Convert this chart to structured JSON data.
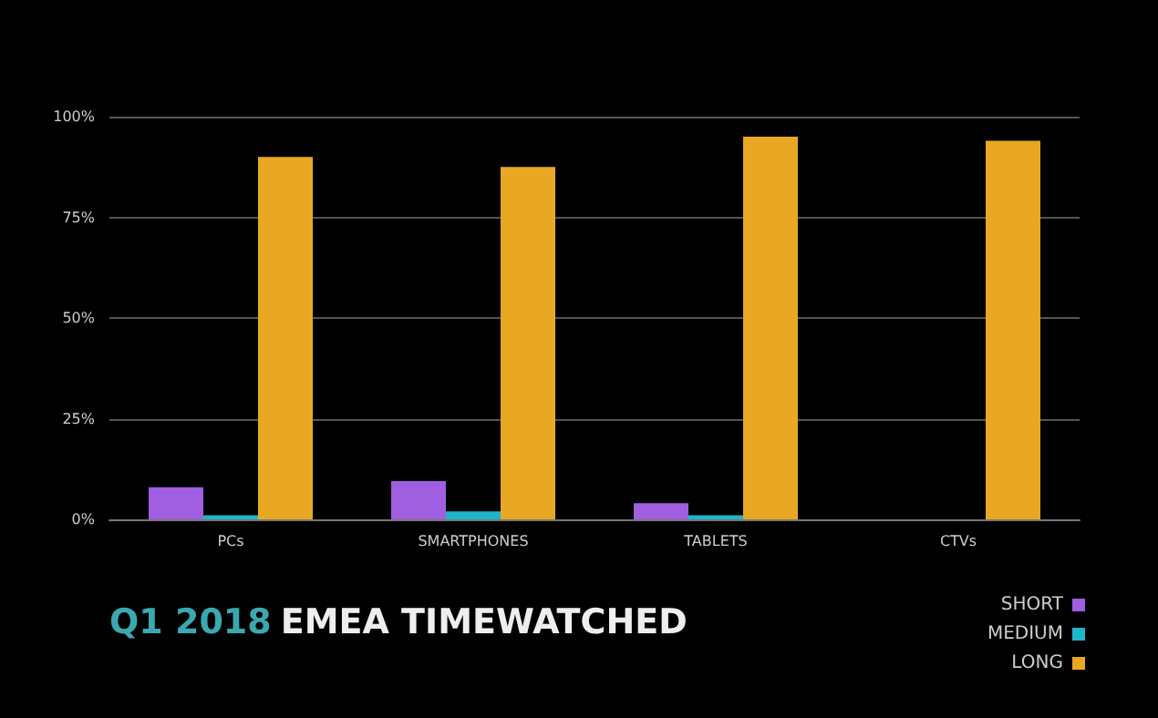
{
  "chart_data": {
    "type": "bar",
    "title": "Q1 2018 EMEA TIMEWATCHED",
    "categories": [
      "PCs",
      "SMARTPHONES",
      "TABLETS",
      "CTVs"
    ],
    "series": [
      {
        "name": "SHORT",
        "color": "#a05ee0",
        "values": [
          8,
          9.5,
          4,
          0
        ]
      },
      {
        "name": "MEDIUM",
        "color": "#1fb5c8",
        "values": [
          1,
          2,
          1,
          0
        ]
      },
      {
        "name": "LONG",
        "color": "#e8a824",
        "values": [
          90,
          87.5,
          95,
          94
        ]
      }
    ],
    "ylim": [
      0,
      100
    ],
    "yticks": [
      {
        "value": 0,
        "label": "0%"
      },
      {
        "value": 25,
        "label": "25%"
      },
      {
        "value": 50,
        "label": "50%"
      },
      {
        "value": 75,
        "label": "75%"
      },
      {
        "value": 100,
        "label": "100%"
      }
    ],
    "grid": "y",
    "legend": "bottom right"
  }
}
